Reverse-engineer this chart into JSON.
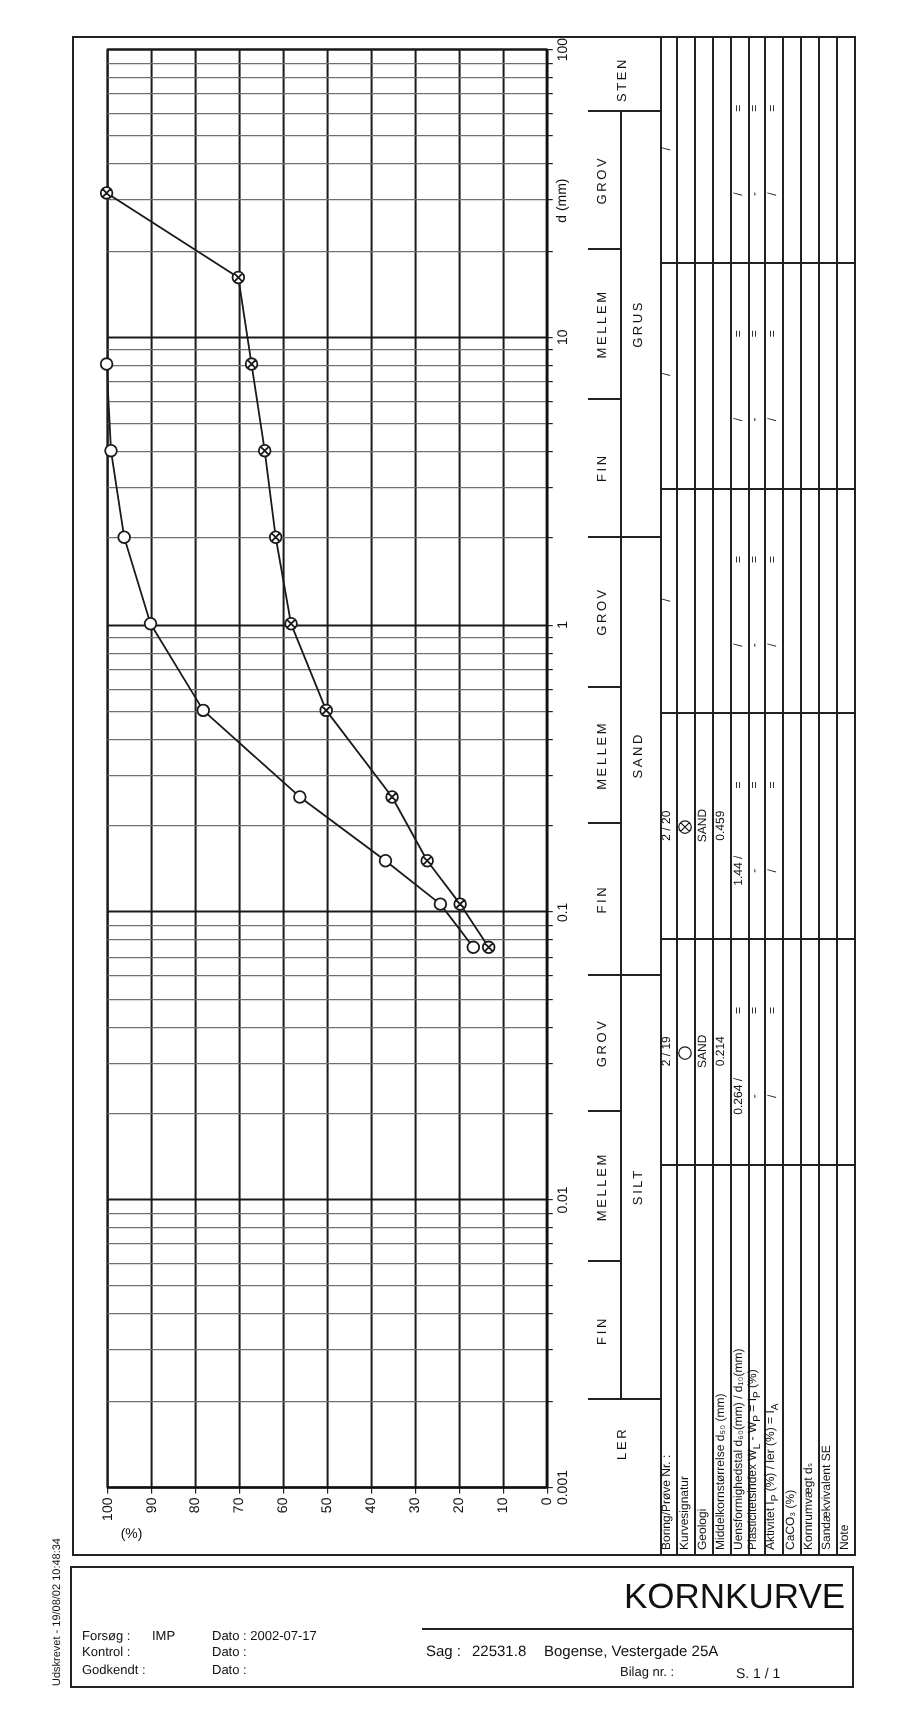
{
  "chart_data": {
    "type": "line",
    "title": "KORNKURVE",
    "xlabel": "(%)",
    "ylabel": "d (mm)",
    "series": [
      {
        "name": "2 / 19",
        "color": "#1a1a1a",
        "marker": "circle",
        "x": [
          100,
          99,
          96,
          90,
          78,
          56,
          36.5,
          24,
          16.5
        ],
        "values": [
          8,
          4,
          2,
          1,
          0.5,
          0.25,
          0.15,
          0.106,
          0.075
        ]
      },
      {
        "name": "2 / 20",
        "color": "#1a1a1a",
        "marker": "cross",
        "x": [
          100,
          70,
          67,
          64,
          61.5,
          58,
          50,
          35,
          27,
          19.5,
          13
        ],
        "values": [
          31.5,
          16,
          8,
          4,
          2,
          1,
          0.5,
          0.25,
          0.15,
          0.106,
          0.075
        ]
      }
    ],
    "xlim": [
      100,
      0
    ],
    "xticks": [
      100,
      90,
      80,
      70,
      60,
      50,
      40,
      30,
      20,
      10,
      0
    ],
    "ylim": [
      0.001,
      100
    ],
    "yticks": [
      0.001,
      {
        "value": 0.002,
        "label": null
      },
      {
        "value": 0.003,
        "label": null
      },
      {
        "value": 0.004,
        "label": null
      },
      {
        "value": 0.005,
        "label": null
      },
      {
        "value": 0.006,
        "label": null
      },
      {
        "value": 0.007,
        "label": null
      },
      {
        "value": 0.008,
        "label": null
      },
      {
        "value": 0.009,
        "label": null
      },
      0.01,
      {
        "value": 0.02,
        "label": null
      },
      {
        "value": 0.03,
        "label": null
      },
      {
        "value": 0.04,
        "label": null
      },
      {
        "value": 0.05,
        "label": null
      },
      {
        "value": 0.06,
        "label": null
      },
      {
        "value": 0.07,
        "label": null
      },
      {
        "value": 0.08,
        "label": null
      },
      {
        "value": 0.09,
        "label": null
      },
      0.1,
      {
        "value": 0.2,
        "label": null
      },
      {
        "value": 0.3,
        "label": null
      },
      {
        "value": 0.4,
        "label": null
      },
      {
        "value": 0.5,
        "label": null
      },
      {
        "value": 0.6,
        "label": null
      },
      {
        "value": 0.7,
        "label": null
      },
      {
        "value": 0.8,
        "label": null
      },
      {
        "value": 0.9,
        "label": null
      },
      1,
      {
        "value": 2,
        "label": null
      },
      {
        "value": 3,
        "label": null
      },
      {
        "value": 4,
        "label": null
      },
      {
        "value": 5,
        "label": null
      },
      {
        "value": 6,
        "label": null
      },
      {
        "value": 7,
        "label": null
      },
      {
        "value": 8,
        "label": null
      },
      {
        "value": 9,
        "label": null
      },
      10,
      {
        "value": 20,
        "label": null
      },
      {
        "value": 30,
        "label": null
      },
      {
        "value": 40,
        "label": null
      },
      {
        "value": 50,
        "label": null
      },
      {
        "value": 60,
        "label": null
      },
      {
        "value": 70,
        "label": null
      },
      {
        "value": 80,
        "label": null
      },
      {
        "value": 90,
        "label": null
      },
      100
    ],
    "log": "y",
    "grid": true,
    "legend": "bottom",
    "annotations": [
      "Udskrevet - 19/08/02 10:48:34",
      "Forsøg :",
      "IMP",
      "Kontrol :",
      "Godkendt :",
      "Dato : 2002-07-17",
      "Dato :",
      "Dato :",
      "Sag :",
      "22531.8",
      "Bogense, Vestergade 25A",
      "Bilag nr. :",
      "S. 1 / 1",
      "LER",
      "FIN",
      "MELLEM",
      "GROV",
      "FIN",
      "MELLEM",
      "GROV",
      "FIN",
      "MELLEM",
      "GROV",
      "STEN",
      "SILT",
      "SAND",
      "GRUS",
      "Boring/Prøve Nr. :",
      "Kurvesignatur",
      "Geologi",
      "Middelkornstørrelse d₅₀ (mm)",
      "Uensformighedstal d₆₀(mm) / d₁₀(mm)",
      "Plasticitetsindex W$_{L}$ - W$_{P}$ = I$_{P}$ (%)",
      "Aktivitet I$_{P}$ (%) / ler (%) = I$_{A}$",
      "CaCO₃ (%)",
      "Kornrumvægt dₛ",
      "Sandækvivalent SE",
      "Note",
      "SAND",
      "SAND",
      "0.214",
      "0.459",
      "/",
      "/",
      "/",
      "0.264 /",
      "=",
      "-",
      "=",
      "/",
      "=",
      "1.44 /",
      "=",
      "-",
      "=",
      "/",
      "=",
      "/",
      "=",
      "-",
      "=",
      "/",
      "=",
      "/",
      "=",
      "-",
      "=",
      "/",
      "=",
      "/",
      "=",
      "-",
      "=",
      "/",
      "="
    ]
  }
}
